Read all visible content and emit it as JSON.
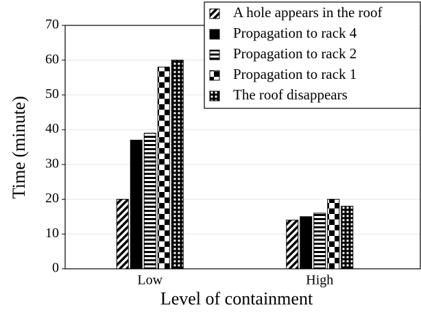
{
  "chart_data": {
    "type": "bar",
    "x_label": "Level of containment",
    "y_label": "Time (minute)",
    "categories": [
      "Low",
      "High"
    ],
    "series": [
      {
        "name": "A hole appears in the roof",
        "color": "#000000",
        "pattern": "diagonal",
        "values": [
          20,
          14
        ]
      },
      {
        "name": "Propagation to rack 4",
        "color": "#000000",
        "pattern": "solid",
        "values": [
          37,
          15
        ]
      },
      {
        "name": "Propagation to rack 2",
        "color": "#000000",
        "pattern": "horizontal",
        "values": [
          39,
          16
        ]
      },
      {
        "name": "Propagation to rack 1",
        "color": "#000000",
        "pattern": "checker",
        "values": [
          58,
          20
        ]
      },
      {
        "name": "The roof disappears",
        "color": "#000000",
        "pattern": "grid",
        "values": [
          60,
          18
        ]
      }
    ],
    "ylim": [
      0,
      70
    ],
    "yticks": [
      0,
      10,
      20,
      30,
      40,
      50,
      60,
      70
    ],
    "grid": true,
    "legend": "top-right"
  }
}
